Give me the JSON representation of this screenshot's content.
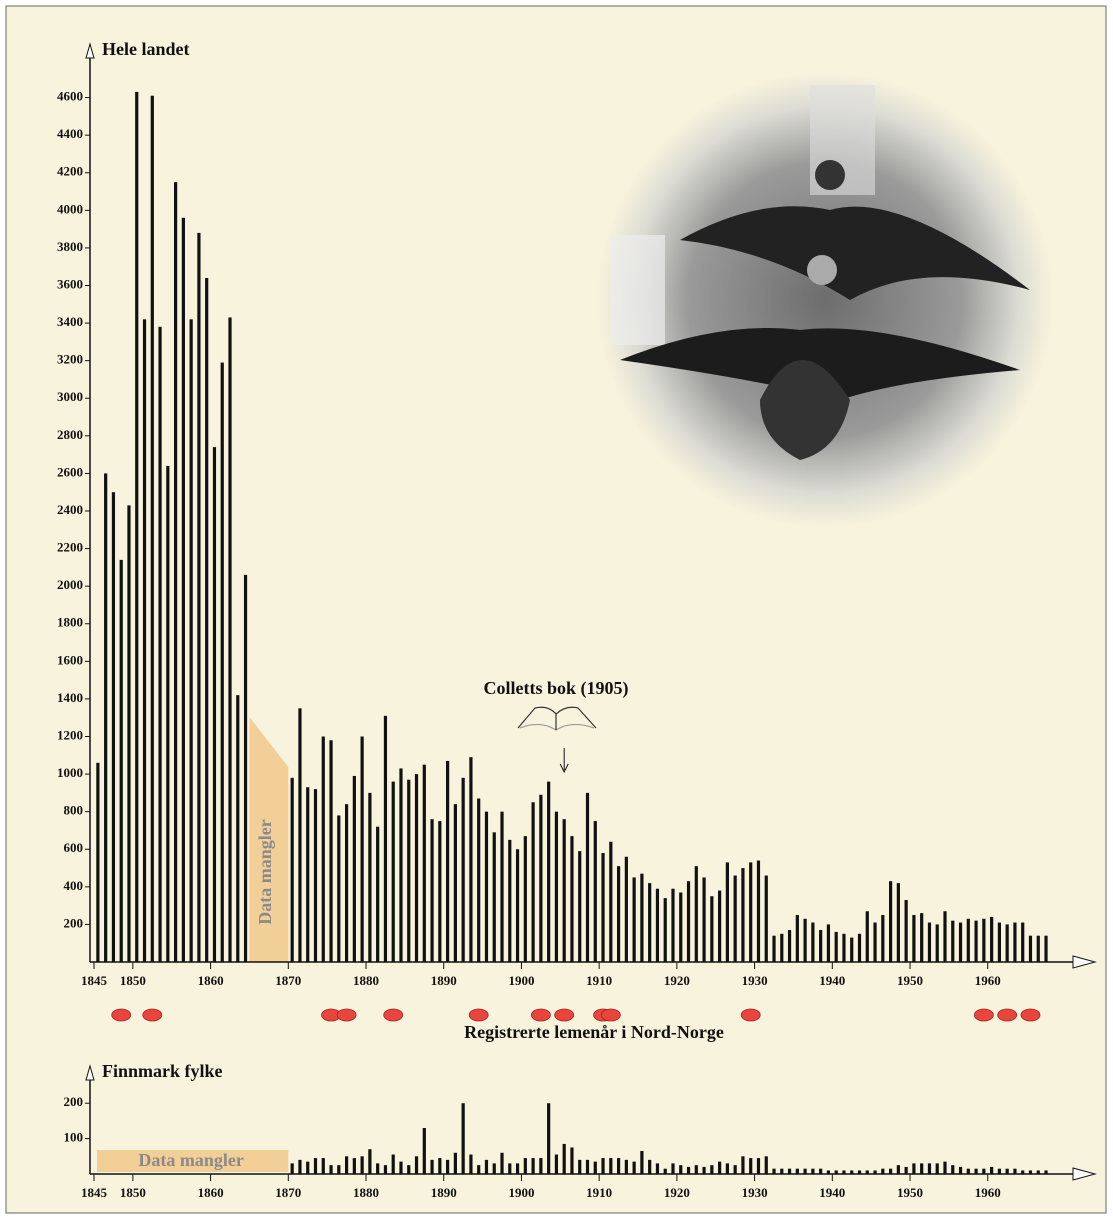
{
  "chart_data": [
    {
      "type": "bar",
      "axis_label": "Hele landet",
      "color": "#111111",
      "x": [
        1845,
        1846,
        1847,
        1848,
        1849,
        1850,
        1851,
        1852,
        1853,
        1854,
        1855,
        1856,
        1857,
        1858,
        1859,
        1860,
        1861,
        1862,
        1863,
        1864,
        1870,
        1871,
        1872,
        1873,
        1874,
        1875,
        1876,
        1877,
        1878,
        1879,
        1880,
        1881,
        1882,
        1883,
        1884,
        1885,
        1886,
        1887,
        1888,
        1889,
        1890,
        1891,
        1892,
        1893,
        1894,
        1895,
        1896,
        1897,
        1898,
        1899,
        1900,
        1901,
        1902,
        1903,
        1904,
        1905,
        1906,
        1907,
        1908,
        1909,
        1910,
        1911,
        1912,
        1913,
        1914,
        1915,
        1916,
        1917,
        1918,
        1919,
        1920,
        1921,
        1922,
        1923,
        1924,
        1925,
        1926,
        1927,
        1928,
        1929,
        1930,
        1931,
        1932,
        1933,
        1934,
        1935,
        1936,
        1937,
        1938,
        1939,
        1940,
        1941,
        1942,
        1943,
        1944,
        1945,
        1946,
        1947,
        1948,
        1949,
        1950,
        1951,
        1952,
        1953,
        1954,
        1955,
        1956,
        1957,
        1958,
        1959,
        1960,
        1961,
        1962,
        1963,
        1964,
        1965,
        1966,
        1967
      ],
      "values": [
        1060,
        2600,
        2500,
        2140,
        2430,
        4630,
        3420,
        4610,
        3380,
        2640,
        4150,
        3960,
        3420,
        3880,
        3640,
        2740,
        3190,
        3430,
        1420,
        2060,
        980,
        1350,
        930,
        920,
        1200,
        1180,
        780,
        840,
        990,
        1200,
        900,
        720,
        1310,
        960,
        1030,
        970,
        1000,
        1050,
        760,
        750,
        1070,
        840,
        980,
        1090,
        870,
        800,
        690,
        800,
        650,
        600,
        670,
        850,
        890,
        960,
        800,
        760,
        670,
        590,
        900,
        750,
        580,
        640,
        510,
        560,
        450,
        470,
        420,
        390,
        340,
        390,
        370,
        430,
        510,
        450,
        350,
        380,
        530,
        460,
        500,
        530,
        540,
        460,
        140,
        150,
        170,
        250,
        230,
        210,
        170,
        200,
        160,
        150,
        130,
        150,
        270,
        210,
        250,
        430,
        420,
        330,
        250,
        260,
        210,
        200,
        270,
        220,
        210,
        230,
        220,
        230,
        240,
        210,
        200,
        210,
        210,
        140,
        140,
        140
      ],
      "xlim": [
        1845,
        1972
      ],
      "ylim": [
        0,
        4800
      ],
      "xticks": [
        1845,
        1850,
        1860,
        1870,
        1880,
        1890,
        1900,
        1910,
        1920,
        1930,
        1940,
        1950,
        1960
      ],
      "yticks": [
        200,
        400,
        600,
        800,
        1000,
        1200,
        1400,
        1600,
        1800,
        2000,
        2200,
        2400,
        2600,
        2800,
        3000,
        3200,
        3400,
        3600,
        3800,
        4000,
        4200,
        4400,
        4600
      ],
      "missing": {
        "label": "Data mangler",
        "from": 1865,
        "to": 1870
      },
      "annotation": {
        "text": "Colletts bok (1905)",
        "x": 1905
      },
      "lemming_label": "Registrerte lemenår i Nord-Norge",
      "lemming_years": [
        1848,
        1852,
        1875,
        1877,
        1883,
        1894,
        1902,
        1905,
        1910,
        1911,
        1929,
        1959,
        1962,
        1965
      ],
      "lemming_color": "#e8463c"
    },
    {
      "type": "bar",
      "axis_label": "Finnmark fylke",
      "color": "#111111",
      "x": [
        1870,
        1871,
        1872,
        1873,
        1874,
        1875,
        1876,
        1877,
        1878,
        1879,
        1880,
        1881,
        1882,
        1883,
        1884,
        1885,
        1886,
        1887,
        1888,
        1889,
        1890,
        1891,
        1892,
        1893,
        1894,
        1895,
        1896,
        1897,
        1898,
        1899,
        1900,
        1901,
        1902,
        1903,
        1904,
        1905,
        1906,
        1907,
        1908,
        1909,
        1910,
        1911,
        1912,
        1913,
        1914,
        1915,
        1916,
        1917,
        1918,
        1919,
        1920,
        1921,
        1922,
        1923,
        1924,
        1925,
        1926,
        1927,
        1928,
        1929,
        1930,
        1931,
        1932,
        1933,
        1934,
        1935,
        1936,
        1937,
        1938,
        1939,
        1940,
        1941,
        1942,
        1943,
        1944,
        1945,
        1946,
        1947,
        1948,
        1949,
        1950,
        1951,
        1952,
        1953,
        1954,
        1955,
        1956,
        1957,
        1958,
        1959,
        1960,
        1961,
        1962,
        1963,
        1964,
        1965,
        1966,
        1967
      ],
      "values": [
        30,
        40,
        35,
        45,
        45,
        25,
        25,
        50,
        45,
        50,
        70,
        30,
        25,
        55,
        35,
        25,
        50,
        130,
        40,
        45,
        40,
        60,
        200,
        55,
        25,
        40,
        30,
        60,
        30,
        30,
        45,
        45,
        45,
        200,
        55,
        85,
        75,
        40,
        40,
        35,
        45,
        45,
        45,
        40,
        35,
        65,
        40,
        30,
        15,
        30,
        25,
        20,
        25,
        20,
        25,
        35,
        30,
        25,
        50,
        45,
        45,
        50,
        15,
        15,
        15,
        15,
        15,
        15,
        15,
        10,
        10,
        10,
        10,
        10,
        10,
        10,
        15,
        15,
        25,
        20,
        30,
        30,
        30,
        30,
        35,
        25,
        20,
        15,
        15,
        15,
        20,
        15,
        15,
        15,
        10,
        10,
        10,
        10
      ],
      "xlim": [
        1845,
        1972
      ],
      "ylim": [
        0,
        260
      ],
      "xticks": [
        1845,
        1850,
        1860,
        1870,
        1880,
        1890,
        1900,
        1910,
        1920,
        1930,
        1940,
        1950,
        1960
      ],
      "yticks": [
        100,
        200
      ],
      "missing": {
        "label": "Data mangler",
        "from": 1845,
        "to": 1870
      }
    }
  ]
}
